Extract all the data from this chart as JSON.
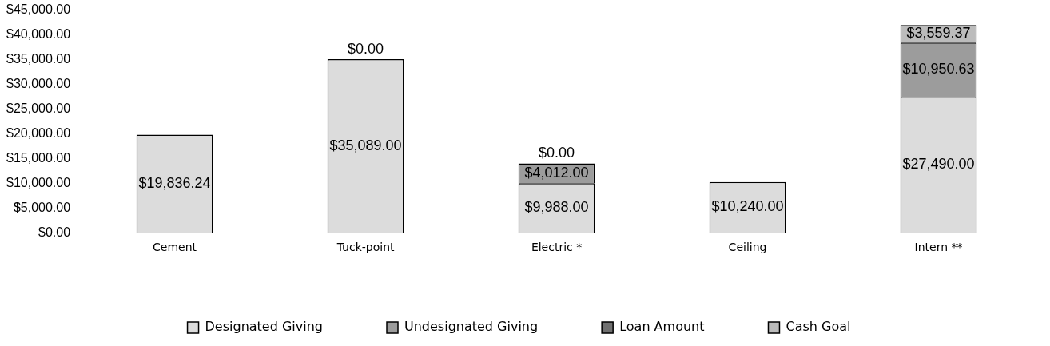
{
  "chart_data": {
    "type": "bar",
    "stacked": true,
    "categories": [
      "Cement",
      "Tuck-point",
      "Electric *",
      "Ceiling",
      "Intern **"
    ],
    "series": [
      {
        "name": "Designated Giving",
        "color": "#dcdcdc",
        "values": [
          19836.24,
          35089,
          9988,
          10240,
          27490
        ],
        "value_labels": [
          "$19,836.24",
          "$35,089.00",
          "$9,988.00",
          "$10,240.00",
          "$27,490.00"
        ]
      },
      {
        "name": "Undesignated Giving",
        "color": "#9c9c9c",
        "values": [
          null,
          null,
          4012,
          null,
          10950.63
        ],
        "value_labels": [
          null,
          null,
          "$4,012.00",
          null,
          "$10,950.63"
        ]
      },
      {
        "name": "Loan Amount",
        "color": "#707070",
        "values": [
          null,
          null,
          null,
          null,
          null
        ]
      },
      {
        "name": "Cash Goal",
        "color": "#bcbcbc",
        "values": [
          null,
          0,
          0,
          null,
          3559.37
        ],
        "value_labels": [
          null,
          "$0.00",
          "$0.00",
          null,
          "$3,559.37"
        ]
      }
    ],
    "ylim": [
      0,
      45000
    ],
    "yticks": [
      {
        "value": 0,
        "label": "$0.00"
      },
      {
        "value": 5000,
        "label": "$5,000.00"
      },
      {
        "value": 10000,
        "label": "$10,000.00"
      },
      {
        "value": 15000,
        "label": "$15,000.00"
      },
      {
        "value": 20000,
        "label": "$20,000.00"
      },
      {
        "value": 25000,
        "label": "$25,000.00"
      },
      {
        "value": 30000,
        "label": "$30,000.00"
      },
      {
        "value": 35000,
        "label": "$35,000.00"
      },
      {
        "value": 40000,
        "label": "$40,000.00"
      },
      {
        "value": 45000,
        "label": "$45,000.00"
      }
    ],
    "grid": false,
    "legend": "bottom"
  }
}
